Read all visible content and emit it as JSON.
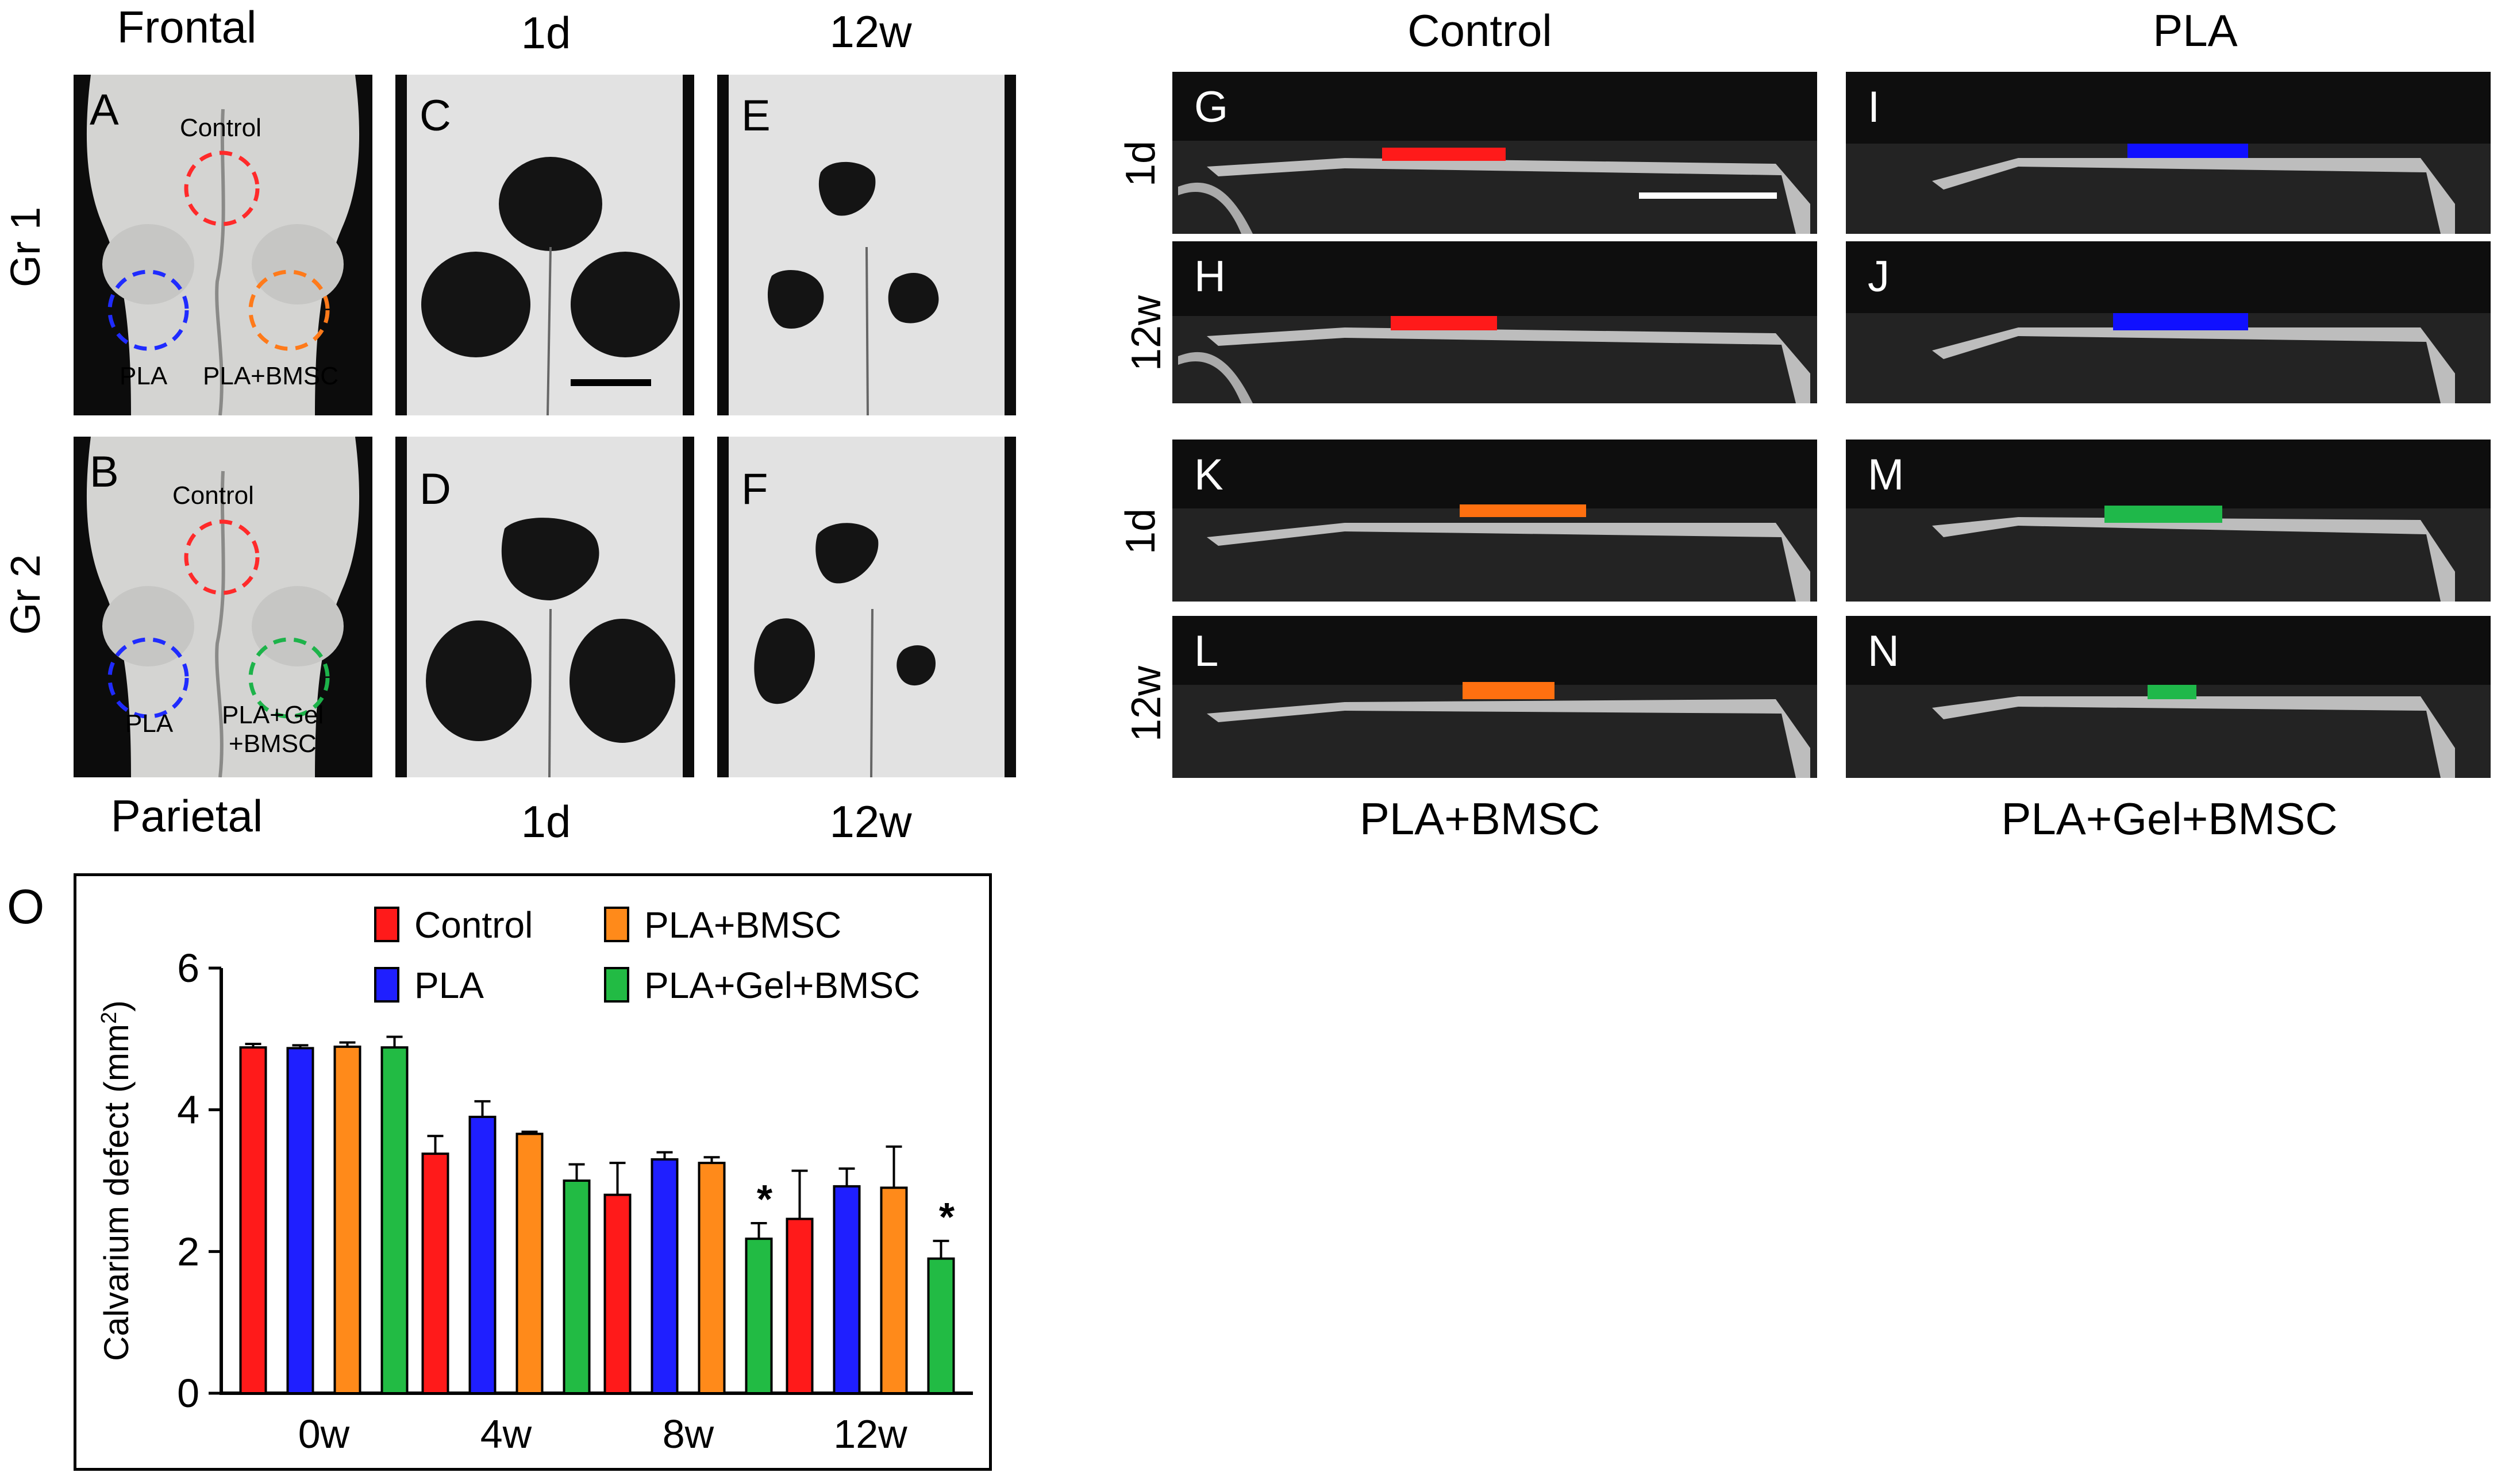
{
  "left_figure": {
    "top_headers": [
      "Frontal",
      "1d",
      "12w"
    ],
    "bottom_headers": [
      "Parietal",
      "1d",
      "12w"
    ],
    "row_labels": [
      "Gr 1",
      "Gr 2"
    ],
    "panel_letters": [
      "A",
      "B",
      "C",
      "D",
      "E",
      "F"
    ],
    "panel_a": {
      "labels": [
        "Control",
        "PLA",
        "PLA+BMSC"
      ],
      "circle_colors": [
        "#ff2a2a",
        "#1f2bff",
        "#ff7a1a"
      ]
    },
    "panel_b": {
      "labels": [
        "Control",
        "PLA",
        "PLA+Gel",
        "+BMSC"
      ],
      "circle_colors": [
        "#ff2a2a",
        "#1f2bff",
        "#1db34a"
      ]
    }
  },
  "right_figure": {
    "top_headers": [
      "Control",
      "PLA"
    ],
    "bottom_headers": [
      "PLA+BMSC",
      "PLA+Gel+BMSC"
    ],
    "row_labels": [
      "1d",
      "12w",
      "1d",
      "12w"
    ],
    "panel_letters": [
      "G",
      "H",
      "I",
      "J",
      "K",
      "L",
      "M",
      "N"
    ],
    "fill_colors": {
      "control": "#ff1a1a",
      "pla": "#1010ff",
      "pla_bmsc": "#ff7010",
      "pla_gel_bmsc": "#1fb84a"
    }
  },
  "chart_data": {
    "panel_letter": "O",
    "type": "bar",
    "ylabel": "Calvarium defect (mm",
    "ylabel_sup": "2",
    "ylabel_close": ")",
    "categories": [
      "0w",
      "4w",
      "8w",
      "12w"
    ],
    "ylim": [
      0,
      6
    ],
    "yticks": [
      "0",
      "2",
      "4",
      "6"
    ],
    "series": [
      {
        "name": "Control",
        "color": "#ff1a1a",
        "values": [
          4.88,
          3.38,
          2.8,
          2.46
        ],
        "errors": [
          0.05,
          0.25,
          0.45,
          0.68
        ]
      },
      {
        "name": "PLA",
        "color": "#1f1fff",
        "values": [
          4.87,
          3.9,
          3.3,
          2.92
        ],
        "errors": [
          0.04,
          0.22,
          0.1,
          0.25
        ]
      },
      {
        "name": "PLA+BMSC",
        "color": "#ff8a1a",
        "values": [
          4.89,
          3.66,
          3.25,
          2.9
        ],
        "errors": [
          0.06,
          0.03,
          0.08,
          0.58
        ]
      },
      {
        "name": "PLA+Gel+BMSC",
        "color": "#22bb44",
        "values": [
          4.88,
          3.0,
          2.18,
          1.9
        ],
        "errors": [
          0.15,
          0.23,
          0.22,
          0.25
        ]
      }
    ],
    "significance_marker": "*",
    "significance_series": "PLA+Gel+BMSC",
    "significance_categories": [
      "8w",
      "12w"
    ]
  }
}
